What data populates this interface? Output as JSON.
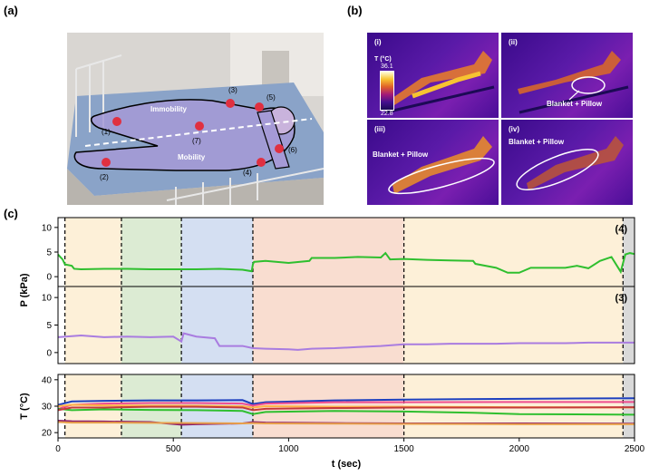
{
  "panels": {
    "a": {
      "label": "(a)",
      "annotations": {
        "immobility": "Immobility",
        "mobility": "Mobility",
        "n1": "(1)",
        "n2": "(2)",
        "n3": "(3)",
        "n4": "(4)",
        "n5": "(5)",
        "n6": "(6)",
        "n7": "(7)"
      }
    },
    "b": {
      "label": "(b)",
      "cells": [
        {
          "label": "(i)"
        },
        {
          "label": "(ii)",
          "note": "Blanket + Pillow"
        },
        {
          "label": "(iii)",
          "note": "Blanket + Pillow"
        },
        {
          "label": "(iv)",
          "note": "Blanket + Pillow"
        }
      ],
      "colorbar": {
        "title": "T (°C)",
        "max": "36.1",
        "min": "22.8"
      }
    },
    "c": {
      "label": "(c)"
    }
  },
  "chart_data": {
    "type": "line",
    "xlabel": "t (sec)",
    "xlim": [
      0,
      2500
    ],
    "xticks": [
      0,
      500,
      1000,
      1500,
      2000,
      2500
    ],
    "phase_boundaries": [
      30,
      275,
      535,
      845,
      1500,
      2450
    ],
    "phase_colors": [
      "#ffffff",
      "#fdf0d8",
      "#dcebd3",
      "#d4dff2",
      "#f9ddd0",
      "#fdf0d8",
      "#d9d9d9"
    ],
    "subplots": [
      {
        "name": "P",
        "ylabel": "P (kPa)",
        "ylim": [
          -2,
          12
        ],
        "yticks": [
          0,
          5,
          10
        ],
        "series": [
          {
            "name": "(4)",
            "color": "#2fbf2f",
            "x": [
              0,
              20,
              30,
              60,
              70,
              100,
              200,
              300,
              400,
              500,
              535,
              600,
              700,
              800,
              840,
              845,
              850,
              900,
              1000,
              1090,
              1100,
              1200,
              1300,
              1400,
              1420,
              1440,
              1500,
              1600,
              1700,
              1800,
              1810,
              1900,
              1950,
              2000,
              2050,
              2100,
              2200,
              2250,
              2300,
              2350,
              2400,
              2440,
              2460,
              2480,
              2500
            ],
            "y": [
              4.5,
              3.5,
              2.5,
              2.2,
              1.6,
              1.5,
              1.6,
              1.6,
              1.5,
              1.5,
              1.5,
              1.5,
              1.6,
              1.4,
              1.1,
              2.5,
              3.0,
              3.2,
              2.8,
              3.2,
              3.8,
              3.8,
              4.0,
              3.9,
              4.8,
              3.5,
              3.6,
              3.4,
              3.3,
              3.2,
              2.6,
              1.8,
              0.8,
              0.8,
              1.8,
              1.8,
              1.8,
              2.2,
              1.7,
              3.2,
              4.0,
              1.0,
              4.5,
              4.8,
              4.6
            ]
          },
          {
            "name": "(3)",
            "color": "#a97ce0",
            "x": [
              0,
              100,
              200,
              300,
              400,
              500,
              535,
              545,
              600,
              680,
              700,
              800,
              845,
              900,
              1000,
              1040,
              1100,
              1200,
              1300,
              1400,
              1500,
              1600,
              1700,
              1800,
              1900,
              2000,
              2100,
              2200,
              2300,
              2400,
              2500
            ],
            "y": [
              2.8,
              3.1,
              2.8,
              2.9,
              2.8,
              2.9,
              2.0,
              3.5,
              2.9,
              2.6,
              1.2,
              1.2,
              0.8,
              0.7,
              0.6,
              0.5,
              0.7,
              0.8,
              1.0,
              1.2,
              1.5,
              1.5,
              1.6,
              1.6,
              1.6,
              1.7,
              1.7,
              1.7,
              1.8,
              1.8,
              1.8
            ]
          }
        ],
        "series_labels": [
          "(4)",
          "(3)"
        ]
      },
      {
        "name": "T",
        "ylabel": "T (°C)",
        "ylim": [
          18,
          42
        ],
        "yticks": [
          20,
          30,
          40
        ],
        "series": [
          {
            "name": "",
            "color": "#1d3fbf",
            "x": [
              0,
              60,
              200,
              400,
              600,
              800,
              845,
              900,
              1200,
              1500,
              2000,
              2500
            ],
            "y": [
              30.5,
              31.8,
              32.0,
              32.2,
              32.2,
              32.3,
              30.8,
              31.5,
              32.2,
              32.5,
              32.8,
              33.0
            ]
          },
          {
            "name": "",
            "color": "#ef4c8f",
            "x": [
              0,
              60,
              200,
              400,
              600,
              800,
              845,
              900,
              1200,
              1500,
              2000,
              2500
            ],
            "y": [
              29.0,
              30.5,
              31.0,
              31.2,
              31.2,
              31.0,
              30.2,
              31.0,
              31.5,
              31.5,
              31.6,
              31.6
            ]
          },
          {
            "name": "",
            "color": "#ffb347",
            "x": [
              0,
              60,
              200,
              400,
              600,
              800,
              845,
              900,
              1200,
              1500,
              2000,
              2500
            ],
            "y": [
              30.0,
              30.5,
              30.3,
              30.2,
              30.2,
              30.0,
              29.5,
              30.0,
              29.8,
              29.8,
              29.6,
              29.5
            ]
          },
          {
            "name": "",
            "color": "#2fbf2f",
            "x": [
              0,
              60,
              200,
              400,
              600,
              800,
              845,
              900,
              1200,
              1500,
              1800,
              2000,
              2500
            ],
            "y": [
              29.0,
              28.5,
              28.8,
              28.6,
              28.5,
              28.2,
              27.0,
              27.8,
              28.2,
              28.0,
              27.5,
              27.0,
              26.8
            ]
          },
          {
            "name": "",
            "color": "#c43a3a",
            "x": [
              0,
              60,
              200,
              400,
              600,
              800,
              845,
              900,
              1200,
              1500,
              2000,
              2500
            ],
            "y": [
              28.5,
              29.5,
              29.5,
              29.8,
              29.8,
              29.5,
              28.5,
              29.0,
              29.3,
              29.5,
              29.5,
              29.6
            ]
          },
          {
            "name": "",
            "color": "#8a1a6a",
            "x": [
              0,
              60,
              200,
              400,
              535,
              600,
              800,
              845,
              900,
              1200,
              1500,
              2000,
              2500
            ],
            "y": [
              24.5,
              24.3,
              24.2,
              24.0,
              23.0,
              23.2,
              23.5,
              24.0,
              23.8,
              23.6,
              23.5,
              23.5,
              23.4
            ]
          },
          {
            "name": "",
            "color": "#e8a04a",
            "x": [
              0,
              60,
              200,
              400,
              600,
              800,
              845,
              900,
              1200,
              1500,
              2000,
              2500
            ],
            "y": [
              24.0,
              23.8,
              23.8,
              23.7,
              23.6,
              23.5,
              23.6,
              23.5,
              23.4,
              23.3,
              23.2,
              23.2
            ]
          }
        ]
      }
    ]
  }
}
